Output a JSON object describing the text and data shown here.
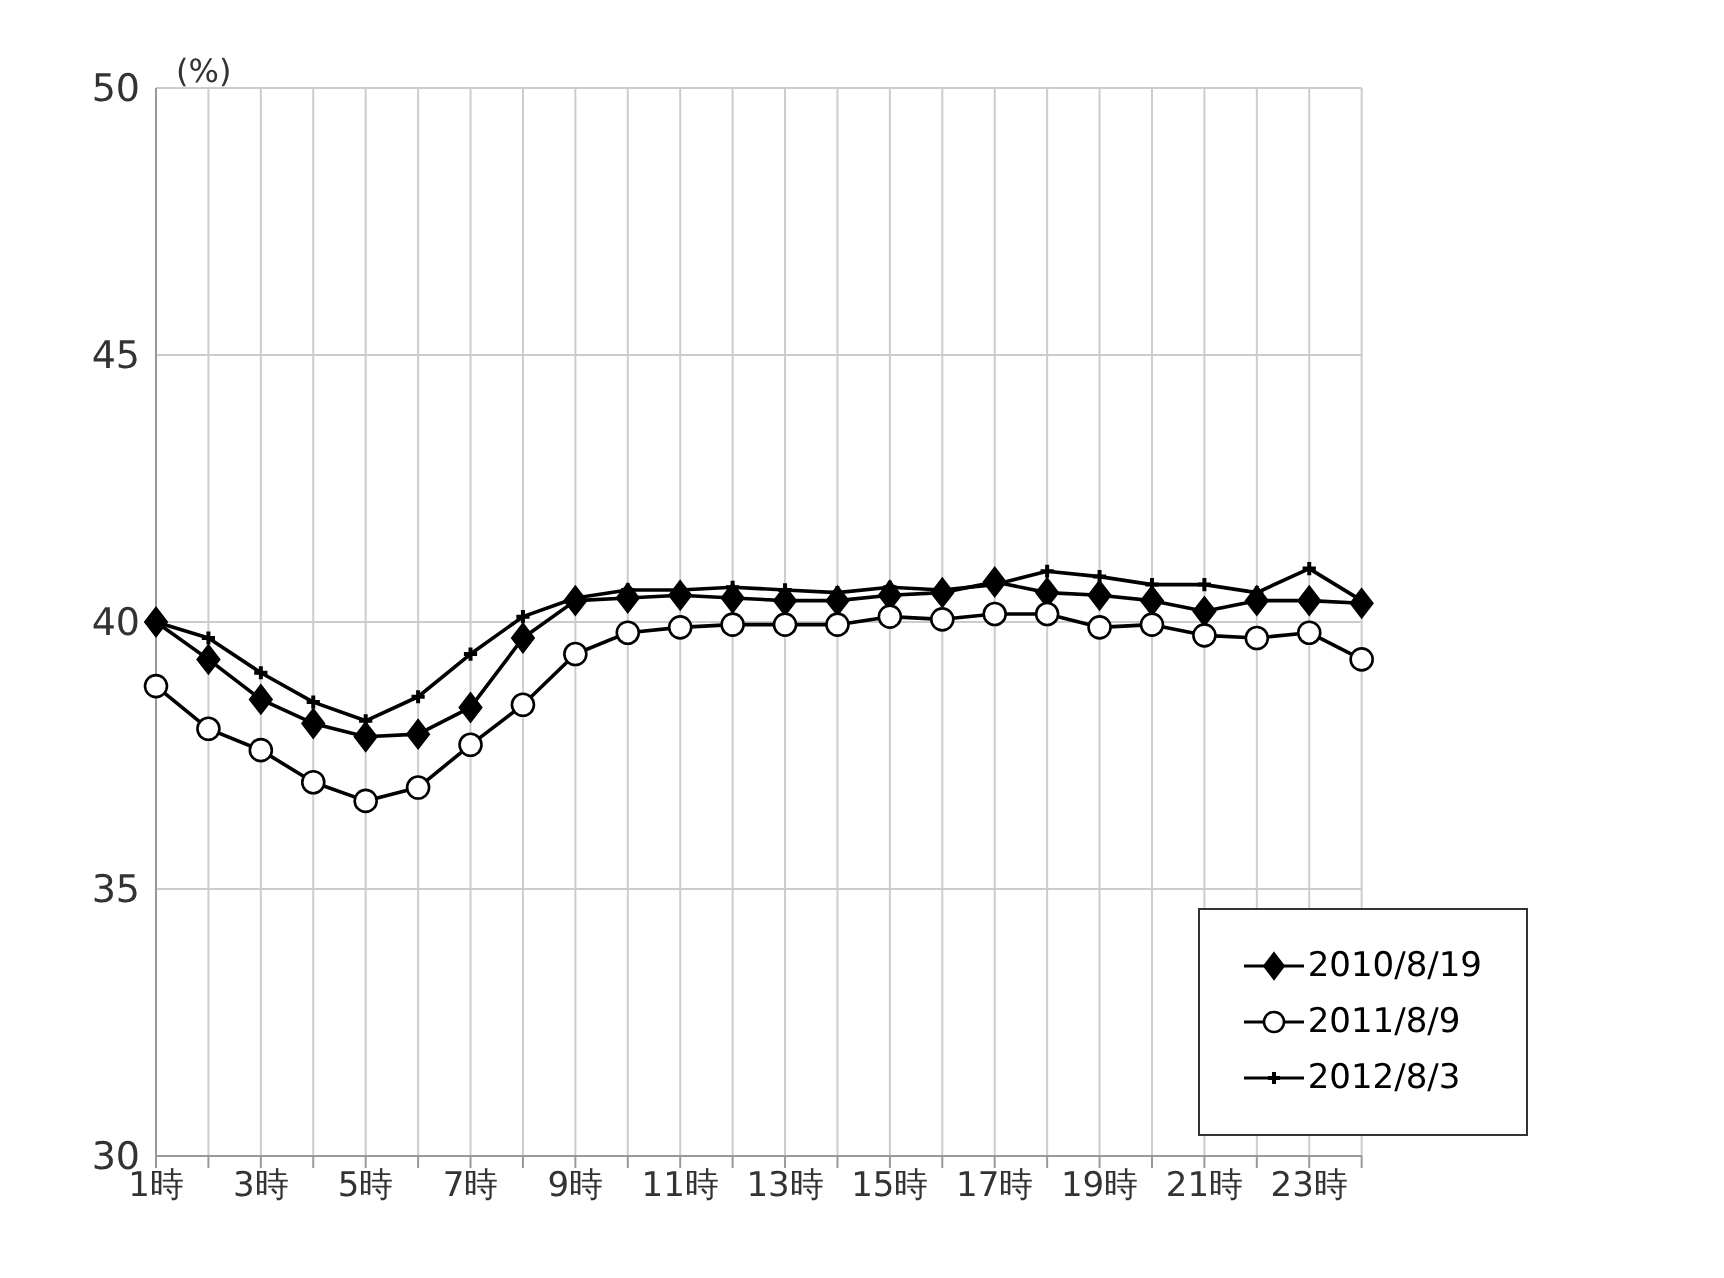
{
  "chart_data": {
    "type": "line",
    "ylabel": "(%)",
    "categories": [
      "1時",
      null,
      "3時",
      null,
      "5時",
      null,
      "7時",
      null,
      "9時",
      null,
      "11時",
      null,
      "13時",
      null,
      "15時",
      null,
      "17時",
      null,
      "19時",
      null,
      "21時",
      null,
      "23時",
      null
    ],
    "series": [
      {
        "name": "2010/8/19",
        "color": "#000000",
        "marker": "diamond",
        "values": [
          40.0,
          39.3,
          38.55,
          38.1,
          37.85,
          37.9,
          38.4,
          39.7,
          40.4,
          40.45,
          40.5,
          40.45,
          40.4,
          40.4,
          40.5,
          40.55,
          40.75,
          40.55,
          40.5,
          40.4,
          40.2,
          40.4,
          40.4,
          40.35
        ]
      },
      {
        "name": "2011/8/9",
        "color": "#000000",
        "marker": "circle",
        "values": [
          38.8,
          38.0,
          37.6,
          37.0,
          36.65,
          36.9,
          37.7,
          38.45,
          39.4,
          39.8,
          39.9,
          39.95,
          39.95,
          39.95,
          40.1,
          40.05,
          40.15,
          40.15,
          39.9,
          39.95,
          39.75,
          39.7,
          39.8,
          39.3
        ]
      },
      {
        "name": "2012/8/3",
        "color": "#000000",
        "marker": "cross",
        "values": [
          40.0,
          39.7,
          39.05,
          38.5,
          38.15,
          38.6,
          39.4,
          40.1,
          40.45,
          40.6,
          40.6,
          40.65,
          40.6,
          40.55,
          40.65,
          40.6,
          40.7,
          40.95,
          40.85,
          40.7,
          40.7,
          40.55,
          41.0,
          40.4
        ]
      }
    ],
    "ylim": [
      30,
      50
    ],
    "yticks": [
      30,
      35,
      40,
      45,
      50
    ],
    "grid": true,
    "legend": "bottom right"
  }
}
